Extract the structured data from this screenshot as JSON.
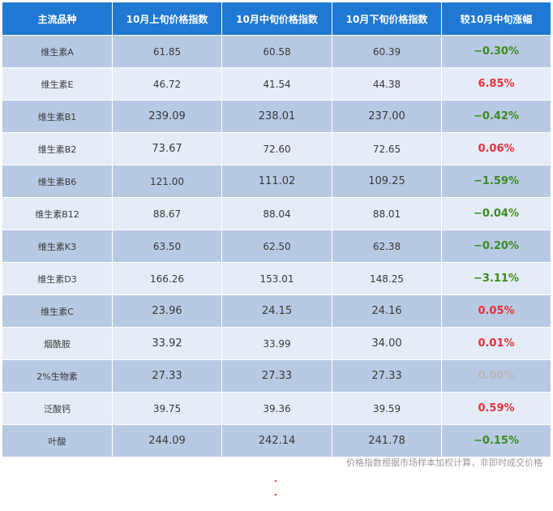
{
  "table": {
    "headers": [
      "主流品种",
      "10月上旬价格指数",
      "10月中旬价格指数",
      "10月下旬价格指数",
      "较10月中旬涨幅"
    ],
    "rows": [
      {
        "name": "维生素A",
        "early": "61.85",
        "mid": "60.58",
        "late": "60.39",
        "change": "−0.30%",
        "trend": "neg"
      },
      {
        "name": "维生素E",
        "early": "46.72",
        "mid": "41.54",
        "late": "44.38",
        "change": "6.85%",
        "trend": "pos"
      },
      {
        "name": "维生素B1",
        "early": "239.09",
        "mid": "238.01",
        "late": "237.00",
        "change": "−0.42%",
        "trend": "neg"
      },
      {
        "name": "维生素B2",
        "early": "73.67",
        "mid": "72.60",
        "late": "72.65",
        "change": "0.06%",
        "trend": "pos"
      },
      {
        "name": "维生素B6",
        "early": "121.00",
        "mid": "111.02",
        "late": "109.25",
        "change": "−1.59%",
        "trend": "neg"
      },
      {
        "name": "维生素B12",
        "early": "88.67",
        "mid": "88.04",
        "late": "88.01",
        "change": "−0.04%",
        "trend": "neg"
      },
      {
        "name": "维生素K3",
        "early": "63.50",
        "mid": "62.50",
        "late": "62.38",
        "change": "−0.20%",
        "trend": "neg"
      },
      {
        "name": "维生素D3",
        "early": "166.26",
        "mid": "153.01",
        "late": "148.25",
        "change": "−3.11%",
        "trend": "neg"
      },
      {
        "name": "维生素C",
        "early": "23.96",
        "mid": "24.15",
        "late": "24.16",
        "change": "0.05%",
        "trend": "pos"
      },
      {
        "name": "烟酰胺",
        "early": "33.92",
        "mid": "33.99",
        "late": "34.00",
        "change": "0.01%",
        "trend": "pos"
      },
      {
        "name": "2%生物素",
        "early": "27.33",
        "mid": "27.33",
        "late": "27.33",
        "change": "0.00%",
        "trend": "zero"
      },
      {
        "name": "泛酸钙",
        "early": "39.75",
        "mid": "39.36",
        "late": "39.59",
        "change": "0.59%",
        "trend": "pos"
      },
      {
        "name": "叶酸",
        "early": "244.09",
        "mid": "242.14",
        "late": "241.78",
        "change": "−0.15%",
        "trend": "neg"
      }
    ]
  },
  "note": "价格指数根据市场样本加权计算，非即时成交价格",
  "colors": {
    "header": "#1f78d1",
    "row_dark": "#b8c9e4",
    "row_light": "#e4ecf7",
    "down": "#3c8c1e",
    "up": "#e8303a",
    "flat": "#b8b8b8"
  }
}
